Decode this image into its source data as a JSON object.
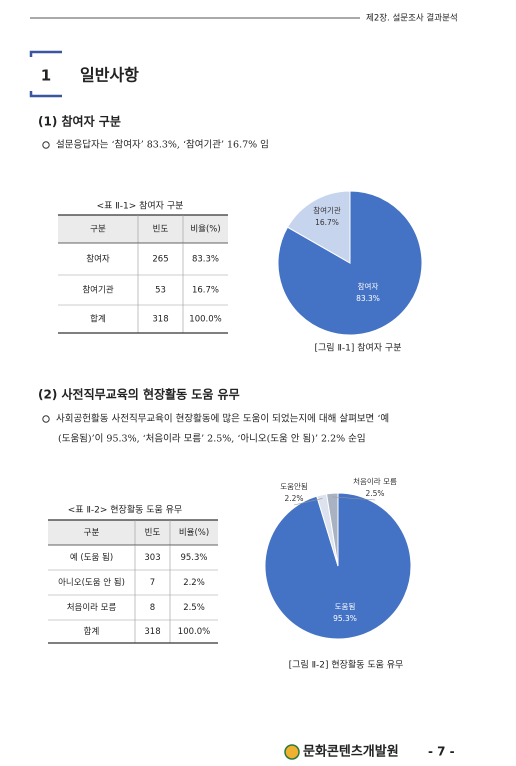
{
  "header": "제2장. 설문조사 결과분석",
  "section": {
    "number": "1",
    "title": "일반사항"
  },
  "parts": [
    {
      "title": "(1) 참여자 구분",
      "bullet": [
        "설문응답자는 ‘참여자’ 83.3%, ‘참여기관’ 16.7% 임"
      ],
      "table": {
        "caption": "<표 Ⅱ-1> 참여자 구분",
        "header": [
          "구분",
          "빈도",
          "비율(%)"
        ],
        "rows": [
          [
            "참여자",
            "265",
            "83.3%"
          ],
          [
            "참여기관",
            "53",
            "16.7%"
          ],
          [
            "합계",
            "318",
            "100.0%"
          ]
        ]
      },
      "chart": {
        "type": "pie",
        "categories": [
          "참여자",
          "참여기관"
        ],
        "values": [
          83.3,
          16.7
        ],
        "value_labels": [
          "83.3%",
          "16.7%"
        ],
        "colors": [
          "#4472c4",
          "#c7d4ee"
        ],
        "caption": "[그림 Ⅱ-1] 참여자 구분"
      }
    },
    {
      "title": "(2) 사전직무교육의 현장활동 도움 유무",
      "bullet": [
        "사회공헌활동 사전직무교육이 현장활동에 많은 도움이 되었는지에 대해 살펴보면 ‘예",
        "(도움됨)’이 95.3%, ‘처음이라 모름’ 2.5%, ‘아니오(도움 안 됨)’ 2.2% 순임"
      ],
      "table": {
        "caption": "<표 Ⅱ-2> 현장활동 도움 유무",
        "header": [
          "구분",
          "빈도",
          "비율(%)"
        ],
        "rows": [
          [
            "예 (도움 됨)",
            "303",
            "95.3%"
          ],
          [
            "아니오(도움 안 됨)",
            "7",
            "2.2%"
          ],
          [
            "처음이라 모름",
            "8",
            "2.5%"
          ],
          [
            "합계",
            "318",
            "100.0%"
          ]
        ]
      },
      "chart": {
        "type": "pie",
        "categories": [
          "도움됨",
          "도움안됨",
          "처음이라 모름"
        ],
        "values": [
          95.3,
          2.2,
          2.5
        ],
        "value_labels": [
          "95.3%",
          "2.2%",
          "2.5%"
        ],
        "colors": [
          "#4472c4",
          "#dde3ee",
          "#a9b2c2"
        ],
        "caption": "[그림 Ⅱ-2] 현장활동 도움 유무"
      }
    }
  ],
  "footer": {
    "org": "문화콘텐츠개발원",
    "page": "- 7 -"
  }
}
